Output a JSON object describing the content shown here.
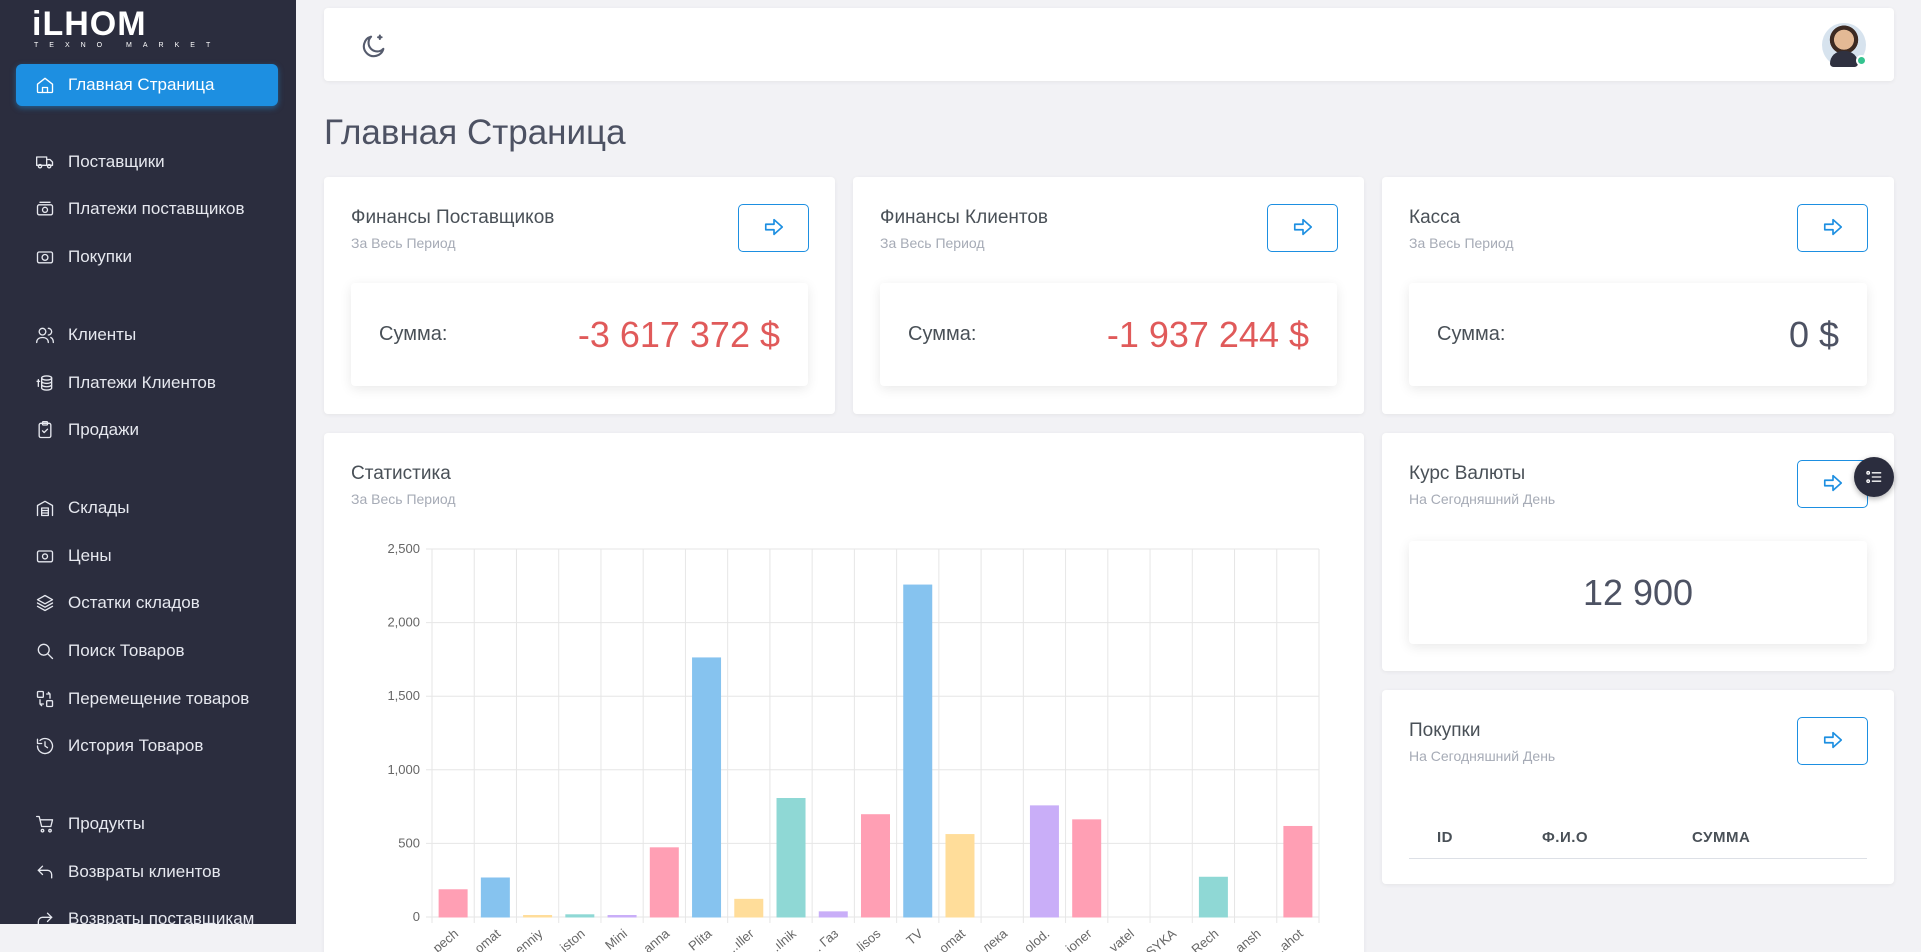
{
  "app": {
    "logo_main": "iLHOM",
    "logo_sub": "TEXNO MARKET"
  },
  "sidebar": {
    "active": {
      "label": "Главная Страница",
      "icon": "home-icon"
    },
    "items": [
      {
        "label": "Поставщики",
        "icon": "truck-icon"
      },
      {
        "label": "Платежи поставщиков",
        "icon": "money-icon"
      },
      {
        "label": "Покупки",
        "icon": "camera-icon"
      },
      {
        "label": "Клиенты",
        "icon": "users-icon"
      },
      {
        "label": "Платежи Клиентов",
        "icon": "coins-icon"
      },
      {
        "label": "Продажи",
        "icon": "clipboard-icon"
      },
      {
        "label": "Склады",
        "icon": "warehouse-icon"
      },
      {
        "label": "Цены",
        "icon": "price-icon"
      },
      {
        "label": "Остатки складов",
        "icon": "layers-icon"
      },
      {
        "label": "Поиск Товаров",
        "icon": "search-icon"
      },
      {
        "label": "Перемещение товаров",
        "icon": "transfer-icon"
      },
      {
        "label": "История Товаров",
        "icon": "history-icon"
      },
      {
        "label": "Продукты",
        "icon": "cart-icon"
      },
      {
        "label": "Возвраты клиентов",
        "icon": "return-icon"
      },
      {
        "label": "Возвраты поставщикам",
        "icon": "forward-icon"
      }
    ]
  },
  "topbar": {
    "theme_icon": "moon-icon",
    "avatar_status": "online"
  },
  "page": {
    "title": "Главная Страница"
  },
  "cards": {
    "suppliers": {
      "title": "Финансы Поставщиков",
      "subtitle": "За Весь Период",
      "sum_label": "Сумма:",
      "sum_value": "-3 617 372 $"
    },
    "clients": {
      "title": "Финансы Клиентов",
      "subtitle": "За Весь Период",
      "sum_label": "Сумма:",
      "sum_value": "-1 937 244 $"
    },
    "cash": {
      "title": "Касса",
      "subtitle": "За Весь Период",
      "sum_label": "Сумма:",
      "sum_value": "0 $"
    },
    "stats": {
      "title": "Статистика",
      "subtitle": "За Весь Период"
    },
    "rate": {
      "title": "Курс Валюты",
      "subtitle": "На Сегодняшний День",
      "value": "12 900"
    },
    "purchases": {
      "title": "Покупки",
      "subtitle": "На Сегодняшний День",
      "columns": [
        "ID",
        "Ф.И.О",
        "СУММА"
      ]
    }
  },
  "colors": {
    "accent": "#1d8fe1",
    "negative": "#e05a5a",
    "sidebar": "#2b2d3e"
  },
  "chart_data": {
    "type": "bar",
    "categories": [
      "...pech",
      "...omat",
      "...enniy",
      "...iston",
      "Mini",
      "...anna",
      "Plita",
      "...ıller",
      "...ılnik",
      "... Газ",
      "...lisos",
      "TV",
      "...omat",
      "...лека",
      "...olod.",
      "...ioner",
      "...vatel",
      "...SYKA",
      "Rech",
      "...ansh",
      "...ahot"
    ],
    "values": [
      185,
      265,
      5,
      15,
      5,
      470,
      1760,
      120,
      805,
      35,
      695,
      2255,
      560,
      0,
      755,
      660,
      0,
      0,
      270,
      0,
      615
    ],
    "colors": [
      "#ff9fb4",
      "#86c3ef",
      "#ffdd9a",
      "#8fd8d5",
      "#c9aef8",
      "#ff9fb4",
      "#86c3ef",
      "#ffdd9a",
      "#8fd8d5",
      "#c9aef8",
      "#ff9fb4",
      "#86c3ef",
      "#ffdd9a",
      "#8fd8d5",
      "#c9aef8",
      "#ff9fb4",
      "#86c3ef",
      "#ffdd9a",
      "#8fd8d5",
      "#c9aef8",
      "#ff9fb4"
    ],
    "ylim": [
      0,
      2500
    ],
    "yticks": [
      "0",
      "500",
      "1,000",
      "1,500",
      "2,000",
      "2,500"
    ],
    "grid": true,
    "legend": "none"
  }
}
